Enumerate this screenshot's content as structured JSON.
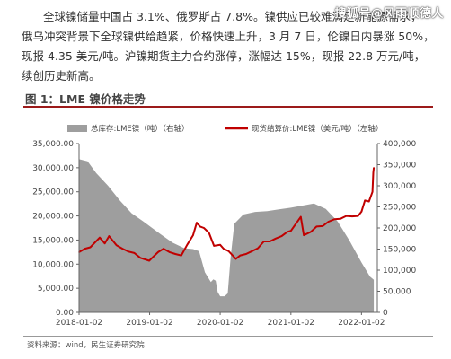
{
  "watermark": "搜狐号@风雨顺德人",
  "paragraph": {
    "line1": "全球镍储量中国占 3.1%、俄罗斯占 7.8%。镍供应已较难满足新能源需求，",
    "line2": "俄乌冲突背景下全球镍供给趋紧，价格快速上升，3 月 7 日，伦镍日内暴涨 50%，",
    "line3": "现报 4.35 美元/吨。沪镍期货主力合约涨停，涨幅达 15%，现报 22.8 万元/吨，",
    "line4": "续创历史新高。"
  },
  "figure_title": "图 1：LME 镍价格走势",
  "source": "资料来源：wind，民生证券研究院",
  "colors": {
    "inventory": "#9e9e9e",
    "price": "#c00000",
    "title_rule": "#9c1a1a"
  },
  "chart_data": {
    "type": "area+line",
    "x_ticks": [
      "2018-01-02",
      "2019-01-02",
      "2020-01-02",
      "2021-01-02",
      "2022-01-02"
    ],
    "left_axis": {
      "ticks": [
        "0.00",
        "5,000.00",
        "10,000.00",
        "15,000.00",
        "20,000.00",
        "25,000.00",
        "30,000.00",
        "35,000.00"
      ],
      "ylim": [
        0,
        35000
      ]
    },
    "right_axis": {
      "ticks": [
        "0",
        "50,000",
        "100,000",
        "150,000",
        "200,000",
        "250,000",
        "300,000",
        "350,000",
        "400,000"
      ],
      "ylim": [
        0,
        400000
      ]
    },
    "grid": false,
    "legend_placement": "top",
    "series": [
      {
        "name": "总库存:LME镍（吨）（右轴）",
        "axis": "right",
        "style": "area",
        "points": [
          [
            "2018-01-02",
            363000
          ],
          [
            "2018-02-15",
            358000
          ],
          [
            "2018-04-01",
            330000
          ],
          [
            "2018-06-01",
            300000
          ],
          [
            "2018-08-01",
            265000
          ],
          [
            "2018-10-01",
            235000
          ],
          [
            "2018-12-01",
            215000
          ],
          [
            "2019-01-15",
            200000
          ],
          [
            "2019-03-01",
            185000
          ],
          [
            "2019-05-01",
            165000
          ],
          [
            "2019-07-01",
            152000
          ],
          [
            "2019-08-15",
            150000
          ],
          [
            "2019-09-15",
            145000
          ],
          [
            "2019-10-15",
            95000
          ],
          [
            "2019-11-15",
            72000
          ],
          [
            "2019-11-28",
            78000
          ],
          [
            "2019-12-10",
            75000
          ],
          [
            "2019-12-20",
            48000
          ],
          [
            "2020-01-02",
            38000
          ],
          [
            "2020-01-25",
            38000
          ],
          [
            "2020-02-10",
            45000
          ],
          [
            "2020-02-25",
            130000
          ],
          [
            "2020-03-15",
            210000
          ],
          [
            "2020-05-01",
            232000
          ],
          [
            "2020-07-01",
            238000
          ],
          [
            "2020-09-01",
            240000
          ],
          [
            "2020-11-01",
            244000
          ],
          [
            "2021-01-02",
            248000
          ],
          [
            "2021-03-01",
            253000
          ],
          [
            "2021-05-01",
            258000
          ],
          [
            "2021-07-01",
            245000
          ],
          [
            "2021-09-01",
            215000
          ],
          [
            "2021-11-01",
            170000
          ],
          [
            "2022-01-02",
            118000
          ],
          [
            "2022-02-15",
            85000
          ],
          [
            "2022-03-07",
            77000
          ]
        ]
      },
      {
        "name": "现货结算价:LME镍（美元/吨）（左轴）",
        "axis": "left",
        "style": "line",
        "points": [
          [
            "2018-01-02",
            12500
          ],
          [
            "2018-02-01",
            13200
          ],
          [
            "2018-03-01",
            13500
          ],
          [
            "2018-04-19",
            15500
          ],
          [
            "2018-05-15",
            14300
          ],
          [
            "2018-06-06",
            15800
          ],
          [
            "2018-07-15",
            13900
          ],
          [
            "2018-08-15",
            13200
          ],
          [
            "2018-09-15",
            12600
          ],
          [
            "2018-10-15",
            12300
          ],
          [
            "2018-11-15",
            11300
          ],
          [
            "2018-12-31",
            10700
          ],
          [
            "2019-01-15",
            11300
          ],
          [
            "2019-02-15",
            12500
          ],
          [
            "2019-03-15",
            13200
          ],
          [
            "2019-04-15",
            12500
          ],
          [
            "2019-05-15",
            12100
          ],
          [
            "2019-06-15",
            11800
          ],
          [
            "2019-07-15",
            14000
          ],
          [
            "2019-08-15",
            16000
          ],
          [
            "2019-09-03",
            18600
          ],
          [
            "2019-09-20",
            17800
          ],
          [
            "2019-10-10",
            17500
          ],
          [
            "2019-11-05",
            16500
          ],
          [
            "2019-12-01",
            13800
          ],
          [
            "2020-01-02",
            14000
          ],
          [
            "2020-01-20",
            13200
          ],
          [
            "2020-02-15",
            12700
          ],
          [
            "2020-03-23",
            11100
          ],
          [
            "2020-04-15",
            11800
          ],
          [
            "2020-05-15",
            12100
          ],
          [
            "2020-06-15",
            12700
          ],
          [
            "2020-07-15",
            13300
          ],
          [
            "2020-08-15",
            14700
          ],
          [
            "2020-09-15",
            14700
          ],
          [
            "2020-10-15",
            15300
          ],
          [
            "2020-11-15",
            15800
          ],
          [
            "2020-12-15",
            16700
          ],
          [
            "2021-01-02",
            16900
          ],
          [
            "2021-02-22",
            19800
          ],
          [
            "2021-03-10",
            16000
          ],
          [
            "2021-04-15",
            16700
          ],
          [
            "2021-05-15",
            17800
          ],
          [
            "2021-06-15",
            17900
          ],
          [
            "2021-07-15",
            18800
          ],
          [
            "2021-08-15",
            19300
          ],
          [
            "2021-09-15",
            19400
          ],
          [
            "2021-10-15",
            20000
          ],
          [
            "2021-11-15",
            19900
          ],
          [
            "2021-12-15",
            20000
          ],
          [
            "2022-01-02",
            20900
          ],
          [
            "2022-01-20",
            23200
          ],
          [
            "2022-02-10",
            23000
          ],
          [
            "2022-02-28",
            25000
          ],
          [
            "2022-03-04",
            29000
          ],
          [
            "2022-03-07",
            30000
          ]
        ]
      }
    ]
  }
}
